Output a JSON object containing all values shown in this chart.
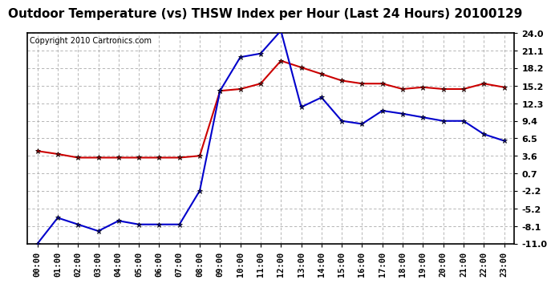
{
  "title": "Outdoor Temperature (vs) THSW Index per Hour (Last 24 Hours) 20100129",
  "copyright": "Copyright 2010 Cartronics.com",
  "hours": [
    "00:00",
    "01:00",
    "02:00",
    "03:00",
    "04:00",
    "05:00",
    "06:00",
    "07:00",
    "08:00",
    "09:00",
    "10:00",
    "11:00",
    "12:00",
    "13:00",
    "14:00",
    "15:00",
    "16:00",
    "17:00",
    "18:00",
    "19:00",
    "20:00",
    "21:00",
    "22:00",
    "23:00"
  ],
  "temp_red": [
    4.4,
    3.9,
    3.3,
    3.3,
    3.3,
    3.3,
    3.3,
    3.3,
    3.6,
    14.4,
    14.7,
    15.6,
    19.4,
    18.3,
    17.2,
    16.1,
    15.6,
    15.6,
    14.7,
    15.0,
    14.7,
    14.7,
    15.6,
    15.0
  ],
  "thsw_blue": [
    -11.0,
    -6.7,
    -7.8,
    -8.9,
    -7.2,
    -7.8,
    -7.8,
    -7.8,
    -2.2,
    14.4,
    20.0,
    20.6,
    24.4,
    11.7,
    13.3,
    9.4,
    8.9,
    11.1,
    10.6,
    10.0,
    9.4,
    9.4,
    7.2,
    6.1
  ],
  "y_ticks": [
    24.0,
    21.1,
    18.2,
    15.2,
    12.3,
    9.4,
    6.5,
    3.6,
    0.7,
    -2.2,
    -5.2,
    -8.1,
    -11.0
  ],
  "ylim_min": -11.0,
  "ylim_max": 24.0,
  "red_color": "#cc0000",
  "blue_color": "#0000cc",
  "grid_color": "#aaaaaa",
  "bg_color": "#ffffff",
  "title_fontsize": 11,
  "copyright_fontsize": 7,
  "tick_fontsize": 7.5,
  "ytick_fontsize": 8
}
